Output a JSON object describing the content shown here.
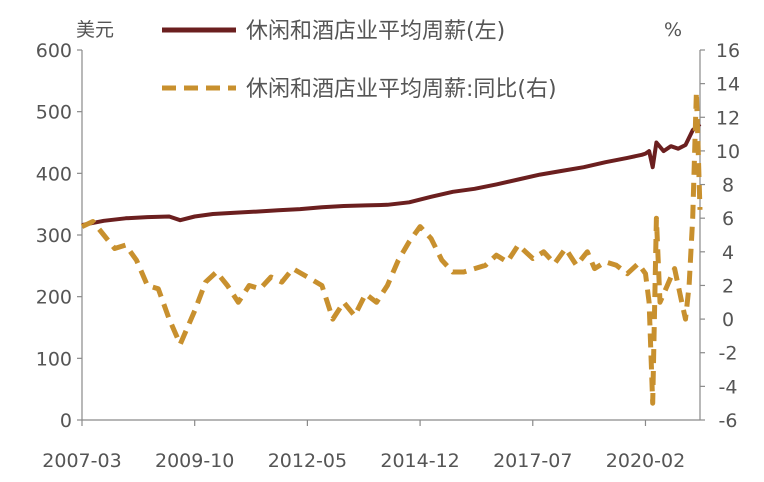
{
  "chart_data": {
    "type": "line",
    "y_left_unit": "美元",
    "y_right_unit": "%",
    "x_ticks": [
      "2007-03",
      "2009-10",
      "2012-05",
      "2014-12",
      "2017-07",
      "2020-02"
    ],
    "y_left_ticks": [
      "600",
      "500",
      "400",
      "300",
      "200",
      "100",
      "0"
    ],
    "y_right_ticks": [
      "16",
      "14",
      "12",
      "10",
      "8",
      "6",
      "4",
      "2",
      "0",
      "-2",
      "-4",
      "-6"
    ],
    "y_left_range": [
      0,
      600
    ],
    "y_right_range": [
      -6,
      16
    ],
    "x_range": [
      "2007-03",
      "2021-05"
    ],
    "colors": {
      "left_series": "#6b1f1f",
      "right_series": "#c8902e"
    },
    "series": [
      {
        "name": "休闲和酒店业平均周薪(左)",
        "axis": "left",
        "style": "solid",
        "points": [
          [
            "2007-03",
            316
          ],
          [
            "2007-09",
            323
          ],
          [
            "2008-03",
            327
          ],
          [
            "2008-09",
            329
          ],
          [
            "2009-03",
            330
          ],
          [
            "2009-06",
            324
          ],
          [
            "2009-10",
            330
          ],
          [
            "2010-03",
            334
          ],
          [
            "2010-09",
            336
          ],
          [
            "2011-03",
            338
          ],
          [
            "2011-09",
            340
          ],
          [
            "2012-03",
            342
          ],
          [
            "2012-09",
            345
          ],
          [
            "2013-03",
            347
          ],
          [
            "2013-09",
            348
          ],
          [
            "2014-03",
            349
          ],
          [
            "2014-09",
            353
          ],
          [
            "2015-03",
            362
          ],
          [
            "2015-09",
            370
          ],
          [
            "2016-03",
            375
          ],
          [
            "2016-09",
            382
          ],
          [
            "2017-03",
            390
          ],
          [
            "2017-09",
            398
          ],
          [
            "2018-03",
            404
          ],
          [
            "2018-09",
            410
          ],
          [
            "2019-03",
            418
          ],
          [
            "2019-09",
            425
          ],
          [
            "2020-01",
            430
          ],
          [
            "2020-02",
            432
          ],
          [
            "2020-03",
            436
          ],
          [
            "2020-04",
            410
          ],
          [
            "2020-05",
            450
          ],
          [
            "2020-07",
            436
          ],
          [
            "2020-09",
            444
          ],
          [
            "2020-11",
            440
          ],
          [
            "2021-01",
            446
          ],
          [
            "2021-03",
            470
          ],
          [
            "2021-05",
            480
          ]
        ]
      },
      {
        "name": "休闲和酒店业平均周薪:同比(右)",
        "axis": "right",
        "style": "dashed",
        "points": [
          [
            "2007-03",
            5.5
          ],
          [
            "2007-06",
            5.8
          ],
          [
            "2007-09",
            5.0
          ],
          [
            "2007-12",
            4.2
          ],
          [
            "2008-03",
            4.4
          ],
          [
            "2008-06",
            3.5
          ],
          [
            "2008-09",
            2.0
          ],
          [
            "2008-12",
            1.8
          ],
          [
            "2009-03",
            0.0
          ],
          [
            "2009-06",
            -1.5
          ],
          [
            "2009-10",
            0.5
          ],
          [
            "2010-01",
            2.2
          ],
          [
            "2010-04",
            2.8
          ],
          [
            "2010-07",
            2.0
          ],
          [
            "2010-10",
            1.0
          ],
          [
            "2011-01",
            2.0
          ],
          [
            "2011-04",
            1.8
          ],
          [
            "2011-07",
            2.5
          ],
          [
            "2011-10",
            2.2
          ],
          [
            "2012-01",
            3.0
          ],
          [
            "2012-05",
            2.5
          ],
          [
            "2012-09",
            2.0
          ],
          [
            "2012-12",
            0.0
          ],
          [
            "2013-03",
            1.0
          ],
          [
            "2013-06",
            0.2
          ],
          [
            "2013-09",
            1.5
          ],
          [
            "2013-12",
            1.0
          ],
          [
            "2014-03",
            2.0
          ],
          [
            "2014-06",
            3.5
          ],
          [
            "2014-09",
            4.6
          ],
          [
            "2014-12",
            5.5
          ],
          [
            "2015-03",
            4.8
          ],
          [
            "2015-06",
            3.5
          ],
          [
            "2015-09",
            2.8
          ],
          [
            "2015-12",
            2.8
          ],
          [
            "2016-03",
            3.0
          ],
          [
            "2016-06",
            3.2
          ],
          [
            "2016-09",
            3.8
          ],
          [
            "2016-12",
            3.4
          ],
          [
            "2017-03",
            4.4
          ],
          [
            "2017-07",
            3.6
          ],
          [
            "2017-10",
            4.0
          ],
          [
            "2018-01",
            3.3
          ],
          [
            "2018-04",
            4.2
          ],
          [
            "2018-07",
            3.2
          ],
          [
            "2018-10",
            4.0
          ],
          [
            "2018-12",
            3.0
          ],
          [
            "2019-03",
            3.4
          ],
          [
            "2019-06",
            3.2
          ],
          [
            "2019-09",
            2.7
          ],
          [
            "2019-12",
            3.3
          ],
          [
            "2020-02",
            2.7
          ],
          [
            "2020-03",
            1.0
          ],
          [
            "2020-04",
            -5.0
          ],
          [
            "2020-05",
            6.0
          ],
          [
            "2020-06",
            1.0
          ],
          [
            "2020-08",
            2.0
          ],
          [
            "2020-10",
            3.0
          ],
          [
            "2020-12",
            1.0
          ],
          [
            "2021-01",
            0.0
          ],
          [
            "2021-02",
            2.0
          ],
          [
            "2021-03",
            6.0
          ],
          [
            "2021-04",
            13.5
          ],
          [
            "2021-05",
            6.5
          ]
        ]
      }
    ]
  }
}
